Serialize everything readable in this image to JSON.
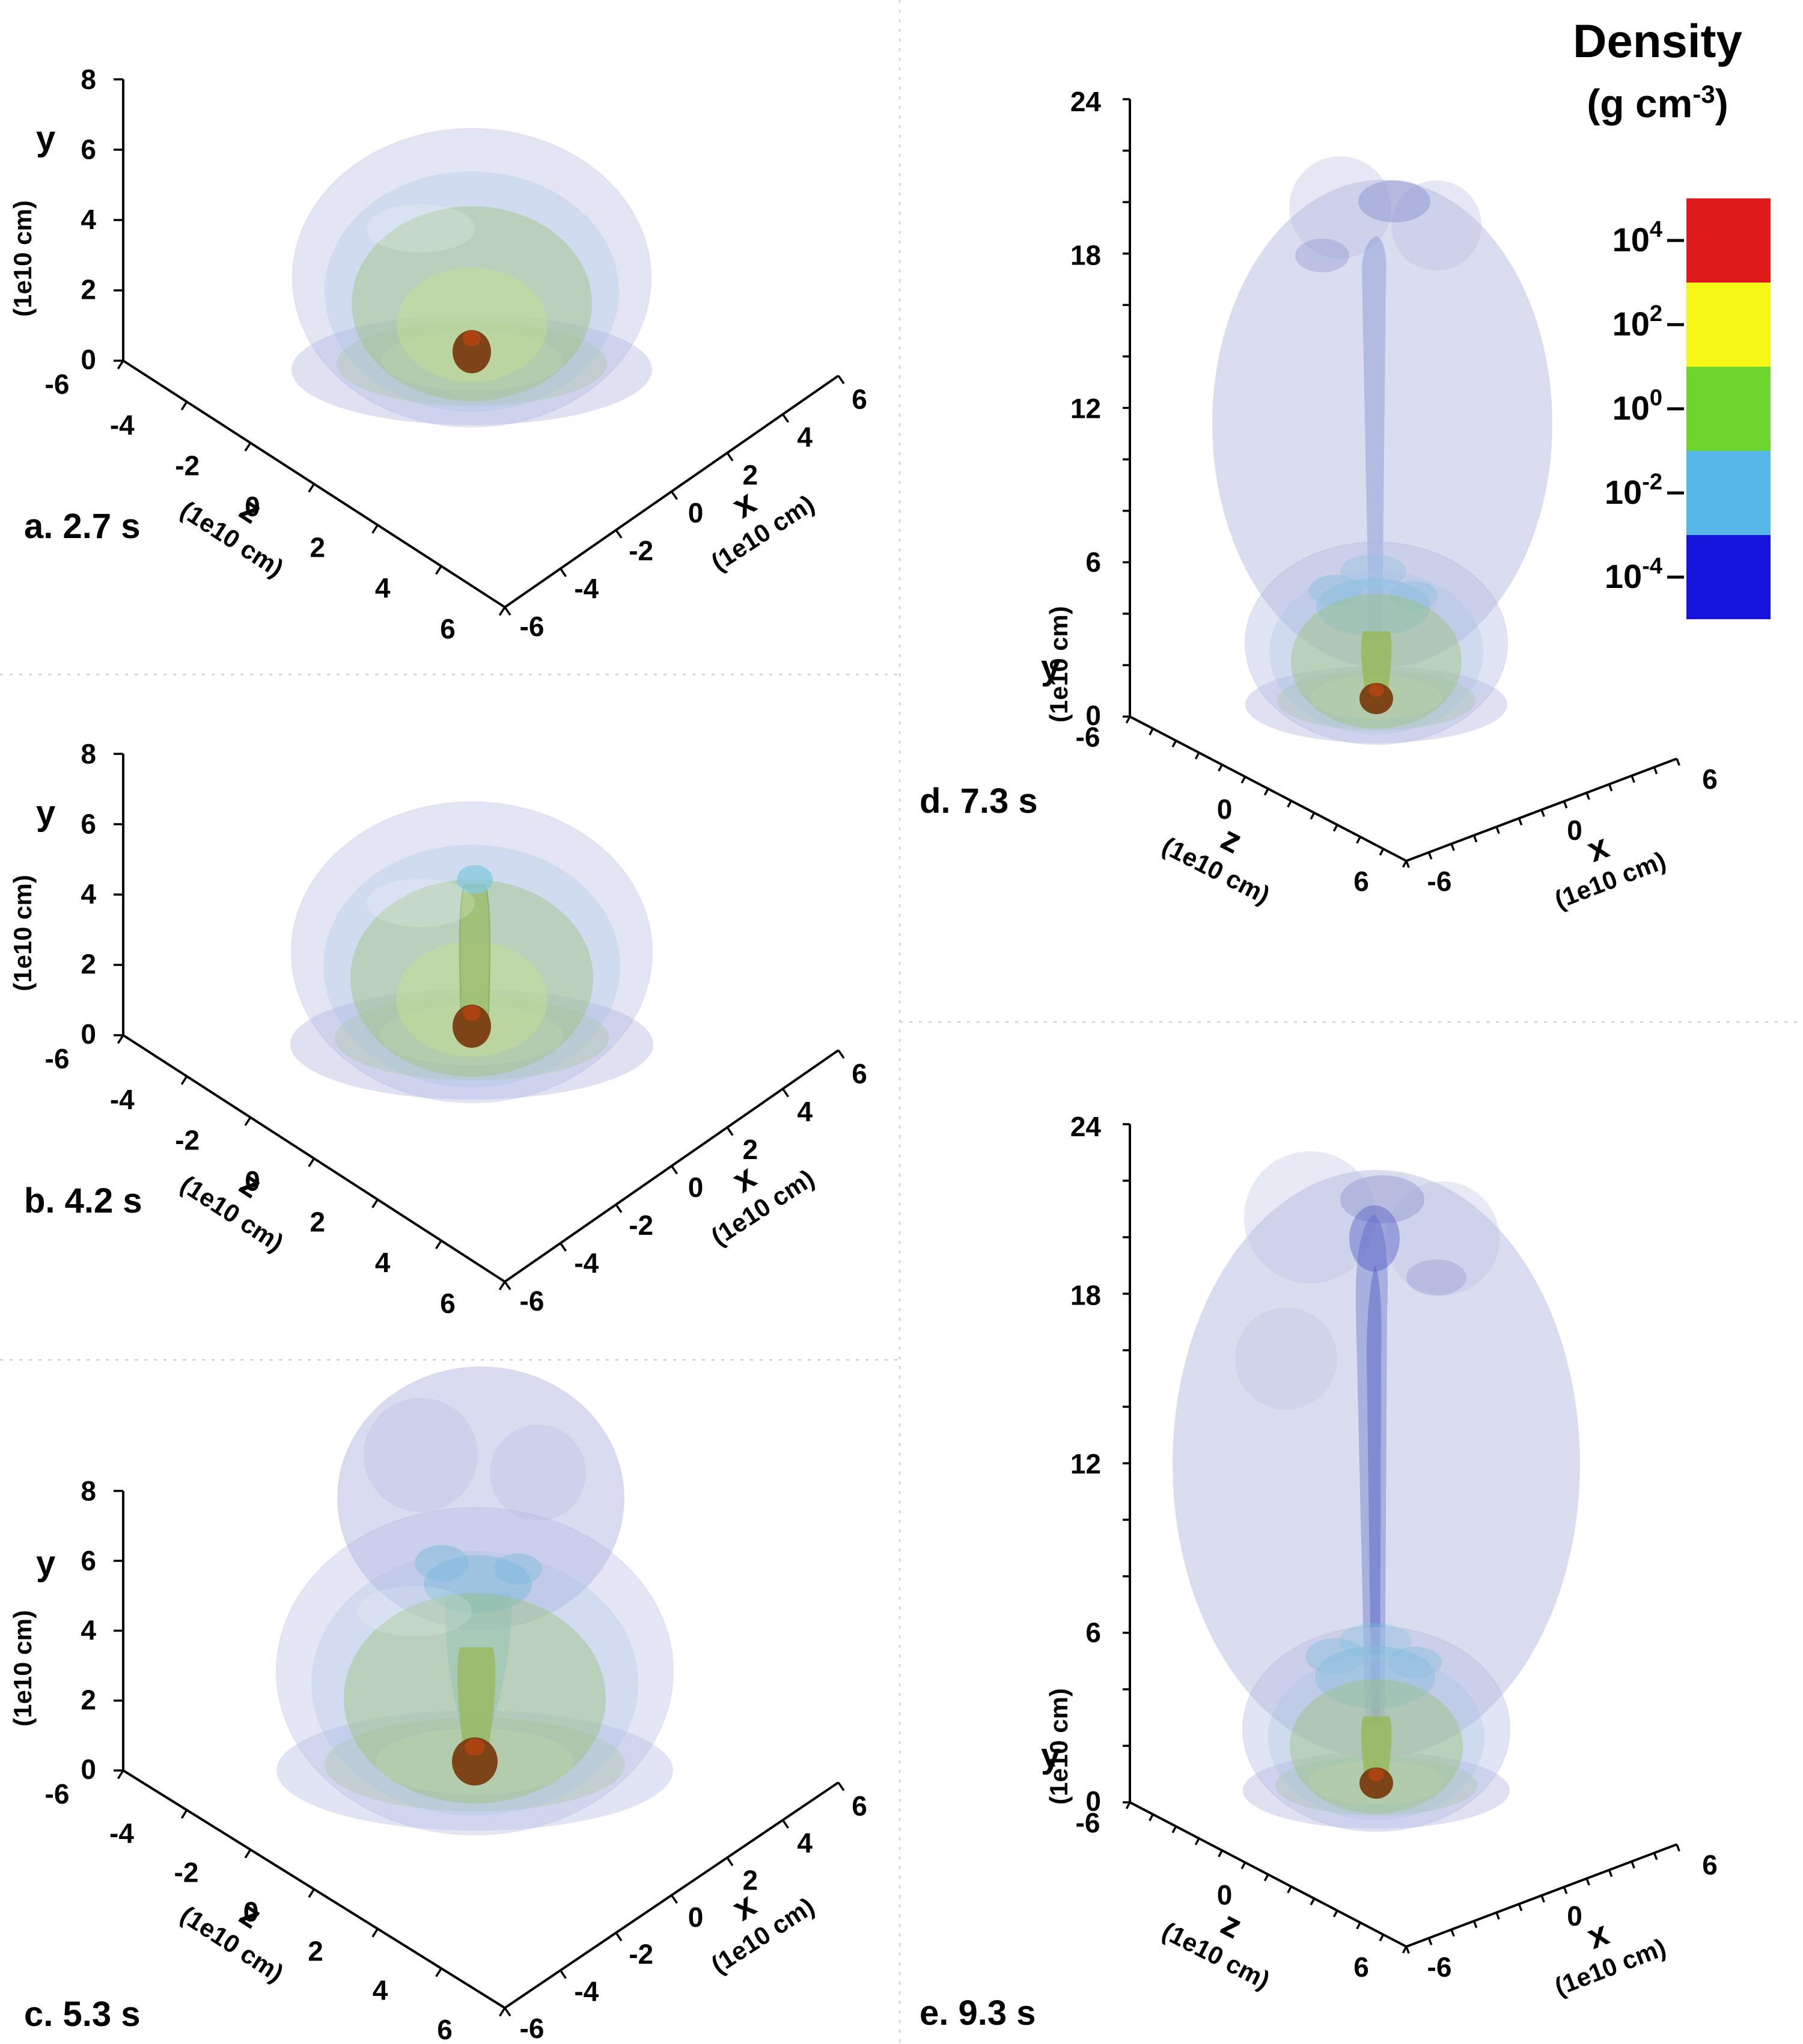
{
  "legend": {
    "title": "Density",
    "units_prefix": "(g cm",
    "units_sup": "-3",
    "units_suffix": ")",
    "entries": [
      {
        "base": "10",
        "exp": "4",
        "color": "#e01b1b"
      },
      {
        "base": "10",
        "exp": "2",
        "color": "#f6f618"
      },
      {
        "base": "10",
        "exp": "0",
        "color": "#6fd52e"
      },
      {
        "base": "10",
        "exp": "-2",
        "color": "#56b6e8"
      },
      {
        "base": "10",
        "exp": "-4",
        "color": "#1414dc"
      }
    ]
  },
  "panels": [
    {
      "id": "a",
      "label": "a. 2.7 s",
      "time_s": 2.7,
      "y_axis": {
        "name": "y",
        "unit": "(1e10 cm)",
        "ticks": [
          "8",
          "6",
          "4",
          "2",
          "0"
        ]
      },
      "z_axis": {
        "name": "z",
        "unit": "(1e10 cm)",
        "ticks": [
          "-6",
          "-4",
          "-2",
          "0",
          "2",
          "4",
          "6"
        ]
      },
      "x_axis": {
        "name": "x",
        "unit": "(1e10 cm)",
        "ticks": [
          "-6",
          "-4",
          "-2",
          "0",
          "2",
          "4",
          "6"
        ]
      }
    },
    {
      "id": "b",
      "label": "b. 4.2 s",
      "time_s": 4.2,
      "y_axis": {
        "name": "y",
        "unit": "(1e10 cm)",
        "ticks": [
          "8",
          "6",
          "4",
          "2",
          "0"
        ]
      },
      "z_axis": {
        "name": "z",
        "unit": "(1e10 cm)",
        "ticks": [
          "-6",
          "-4",
          "-2",
          "0",
          "2",
          "4",
          "6"
        ]
      },
      "x_axis": {
        "name": "x",
        "unit": "(1e10 cm)",
        "ticks": [
          "-6",
          "-4",
          "-2",
          "0",
          "2",
          "4",
          "6"
        ]
      }
    },
    {
      "id": "c",
      "label": "c. 5.3 s",
      "time_s": 5.3,
      "y_axis": {
        "name": "y",
        "unit": "(1e10 cm)",
        "ticks": [
          "8",
          "6",
          "4",
          "2",
          "0"
        ]
      },
      "z_axis": {
        "name": "z",
        "unit": "(1e10 cm)",
        "ticks": [
          "-6",
          "-4",
          "-2",
          "0",
          "2",
          "4",
          "6"
        ]
      },
      "x_axis": {
        "name": "x",
        "unit": "(1e10 cm)",
        "ticks": [
          "-6",
          "-4",
          "-2",
          "0",
          "2",
          "4",
          "6"
        ]
      }
    },
    {
      "id": "d",
      "label": "d. 7.3 s",
      "time_s": 7.3,
      "y_axis": {
        "name": "y",
        "unit": "(1e10 cm)",
        "ticks": [
          "24",
          "18",
          "12",
          "6",
          "0"
        ]
      },
      "z_axis": {
        "name": "z",
        "unit": "(1e10 cm)",
        "ticks": [
          "-6",
          "0",
          "6"
        ]
      },
      "x_axis": {
        "name": "x",
        "unit": "(1e10 cm)",
        "ticks": [
          "-6",
          "0",
          "6"
        ]
      }
    },
    {
      "id": "e",
      "label": "e. 9.3 s",
      "time_s": 9.3,
      "y_axis": {
        "name": "y",
        "unit": "(1e10 cm)",
        "ticks": [
          "24",
          "18",
          "12",
          "6",
          "0"
        ]
      },
      "z_axis": {
        "name": "z",
        "unit": "(1e10 cm)",
        "ticks": [
          "-6",
          "0",
          "6"
        ]
      },
      "x_axis": {
        "name": "x",
        "unit": "(1e10 cm)",
        "ticks": [
          "-6",
          "0",
          "6"
        ]
      }
    }
  ],
  "chart_data": {
    "type": "isosurface",
    "title": "Density (g cm-3)",
    "panel_labels": [
      "a. 2.7 s",
      "b. 4.2 s",
      "c. 5.3 s",
      "d. 7.3 s",
      "e. 9.3 s"
    ],
    "times_s": [
      2.7,
      4.2,
      5.3,
      7.3,
      9.3
    ],
    "iso_levels_g_cm3": [
      10000,
      100,
      1,
      0.01,
      0.0001
    ],
    "iso_level_colors": [
      "#e01b1b",
      "#f6f618",
      "#6fd52e",
      "#56b6e8",
      "#1414dc"
    ],
    "axes": {
      "small_panels": {
        "x_range_1e10cm": [
          -6,
          6
        ],
        "z_range_1e10cm": [
          -6,
          6
        ],
        "y_range_1e10cm": [
          0,
          8
        ]
      },
      "large_panels": {
        "x_range_1e10cm": [
          -6,
          6
        ],
        "z_range_1e10cm": [
          -6,
          6
        ],
        "y_range_1e10cm": [
          0,
          24
        ]
      },
      "unit": "1e10 cm"
    },
    "legend_position": "top-right",
    "description": "Five 3D density-isosurface snapshots at increasing times; nested translucent shells (high-density brown/red core, green mid-density shells, pale blue/lavender low-density envelope) with a low-density plume expanding upward along +y in later panels."
  }
}
